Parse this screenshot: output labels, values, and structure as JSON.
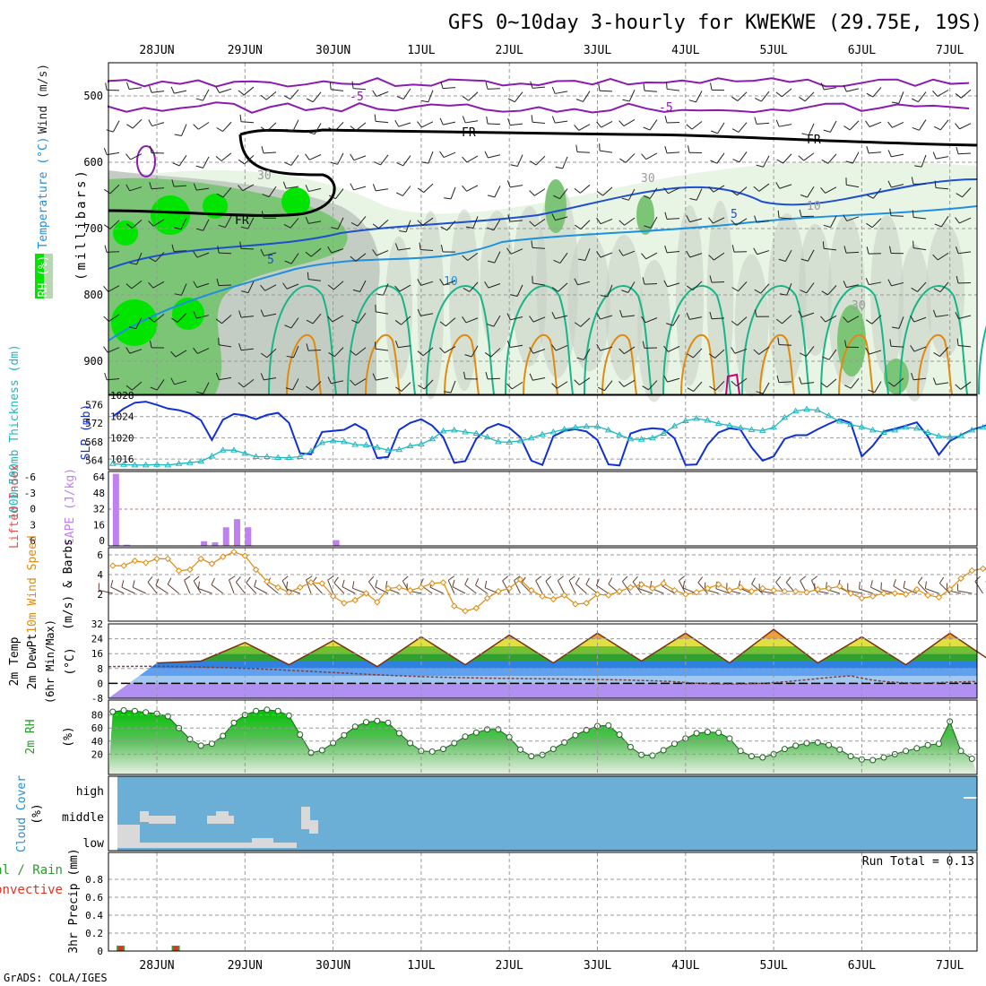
{
  "title": "GFS 0~10day 3-hourly for KWEKWE (29.75E, 19S)",
  "credit": "GrADS: COLA/IGES",
  "dates": [
    "28JUN",
    "29JUN",
    "30JUN",
    "1JUL",
    "2JUL",
    "3JUL",
    "4JUL",
    "5JUL",
    "6JUL",
    "7JUL"
  ],
  "colors": {
    "rh_light": "#e8f4e4",
    "rh_mid": "#b9d6b3",
    "rh_gray": "#c4cdc3",
    "rh_green": "#7cc576",
    "rh_bright": "#00e400",
    "temp_purple": "#8a1ab0",
    "temp_blue": "#1e4fd0",
    "temp_lightblue": "#1e90e0",
    "temp_teal": "#19b48a",
    "temp_orange": "#e08a10",
    "temp_magenta": "#d0007a",
    "slp": "#1030d0",
    "thickness": "#20b8c0",
    "cape": "#c080f0",
    "wind": "#e08a10",
    "barb": "#604030",
    "cloud_bg": "#6baed6",
    "cloud_fill": "#d9d9d9",
    "precip_green": "#2ca02c",
    "precip_red": "#e03020"
  },
  "panels": {
    "upper_air": {
      "ylabel_main": "(millibars)",
      "side_labels": [
        {
          "text": "Wind (m/s)",
          "color": "#222222"
        },
        {
          "text": "Temperature (°C)",
          "color": "#1e90e0"
        },
        {
          "text": "RH (%)",
          "color": "#2a8a2a"
        }
      ],
      "yticks": [
        500,
        600,
        700,
        800,
        900
      ],
      "contour_labels": [
        "-5",
        "-5",
        "FR",
        "FR",
        "FR",
        "5",
        "10",
        "5",
        "10",
        "30",
        "30",
        "30"
      ]
    },
    "thickness_slp": {
      "left_label": "1000-500mb Thickness (dm)",
      "right_label": "SLP (mb)",
      "left_ticks": [
        576,
        572,
        568,
        564
      ],
      "right_ticks": [
        1028,
        1024,
        1020,
        1016
      ]
    },
    "cape_li": {
      "left_label": "Lifted Index",
      "right_label": "CAPE (J/kg)",
      "left_ticks": [
        "-6",
        "-3",
        "0",
        "3",
        "6"
      ],
      "right_ticks": [
        "64",
        "48",
        "32",
        "16",
        "0"
      ]
    },
    "wind10m": {
      "label": "10m Wind Speed (m/s) & Barbs",
      "yticks": [
        6,
        4,
        2
      ]
    },
    "temp2m": {
      "label": "2m Temp 2m DewPt (6hr Min/Max) (°C)",
      "yticks": [
        32,
        24,
        16,
        8,
        0,
        -8
      ]
    },
    "rh2m": {
      "label": "2m RH (%)",
      "yticks": [
        80,
        60,
        40,
        20
      ]
    },
    "cloud": {
      "label": "Cloud Cover (%)",
      "levels": [
        "high",
        "middle",
        "low"
      ]
    },
    "precip": {
      "label": "3hr Precip (mm)",
      "legend1": "Total / Rain",
      "legend2": "Convective",
      "run_total": "Run Total = 0.13",
      "yticks": [
        0.8,
        0.6,
        0.4,
        0.2,
        0
      ]
    }
  },
  "chart_data": [
    {
      "type": "line",
      "title": "1000-500mb Thickness (dm) / SLP (mb)",
      "x_start": "2024-06-27 12Z",
      "x_step_hours": 3,
      "series": [
        {
          "name": "SLP (mb)",
          "ylim": [
            1014,
            1028
          ],
          "values": [
            1024,
            1025.5,
            1026.6,
            1026.8,
            1026.2,
            1025.5,
            1025.2,
            1024.6,
            1023.3,
            1019.6,
            1023.4,
            1024.5,
            1024.2,
            1023.5,
            1024.3,
            1024.7,
            1022.8,
            1017.1,
            1016.9,
            1021.1,
            1021.3,
            1021.5,
            1022.6,
            1021.4,
            1016.2,
            1016.4,
            1021.5,
            1022.8,
            1023.5,
            1022.3,
            1020.1,
            1015.3,
            1015.6,
            1019.8,
            1021.8,
            1022.6,
            1021.9,
            1020.1,
            1015.7,
            1014.9,
            1020.3,
            1021.3,
            1021.6,
            1021.2,
            1019.6,
            1015.0,
            1014.8,
            1020.8,
            1021.5,
            1021.8,
            1021.6,
            1019.9,
            1014.9,
            1015.0,
            1018.7,
            1021.0,
            1021.8,
            1021.5,
            1018.2,
            1015.7,
            1016.5,
            1019.8,
            1020.5,
            1020.5,
            1021.6,
            1022.6,
            1023.5,
            1022.8,
            1016.5,
            1018.5,
            1021.2,
            1021.7,
            1022.3,
            1022.9,
            1020.3,
            1016.8,
            1019.4,
            1020.5,
            1021.5,
            1022.1,
            1023.0
          ]
        },
        {
          "name": "1000-500mb Thickness (dm)",
          "ylim": [
            562,
            578
          ],
          "values": [
            563.3,
            563.1,
            563.0,
            563.0,
            563.1,
            563.0,
            563.3,
            563.5,
            563.8,
            564.9,
            566.2,
            566.2,
            565.5,
            564.8,
            564.8,
            564.6,
            564.6,
            564.8,
            566.0,
            567.8,
            568.2,
            568.0,
            567.4,
            567.3,
            566.8,
            566.2,
            566.3,
            567.1,
            567.5,
            568.6,
            570.3,
            570.5,
            570.1,
            569.8,
            569.0,
            568.0,
            567.9,
            568.2,
            568.8,
            569.6,
            570.1,
            570.7,
            571.1,
            571.3,
            571.3,
            570.5,
            569.5,
            568.6,
            568.5,
            568.8,
            569.8,
            571.4,
            572.5,
            573.0,
            572.6,
            571.9,
            571.5,
            571.0,
            570.6,
            570.4,
            571.1,
            573.2,
            574.6,
            575.0,
            574.8,
            573.6,
            572.4,
            571.7,
            571.2,
            570.5,
            570.0,
            570.5,
            571.1,
            570.9,
            570.0,
            569.2,
            569.0,
            569.3,
            570.5,
            571.1,
            572.0
          ]
        }
      ]
    },
    {
      "type": "bar",
      "title": "CAPE (J/kg)",
      "ylim": [
        0,
        64
      ],
      "values": [
        62,
        1,
        0,
        0,
        0,
        0,
        0,
        0,
        4,
        3,
        16,
        23,
        16,
        0,
        0,
        0,
        0,
        0,
        0,
        0,
        5,
        0,
        0,
        0,
        0,
        0,
        0,
        0,
        0,
        0,
        0,
        0,
        0,
        0,
        0,
        0,
        0,
        0,
        0,
        0,
        0,
        0,
        0,
        0,
        0,
        0,
        0,
        0,
        0,
        0,
        0,
        0,
        0,
        0,
        0,
        0,
        0,
        0,
        0,
        0,
        0,
        0,
        0,
        0,
        0,
        0,
        0,
        0,
        0,
        0,
        0,
        0,
        0,
        0,
        0,
        0,
        0,
        0,
        0,
        0,
        0
      ]
    },
    {
      "type": "line",
      "title": "10m Wind Speed (m/s)",
      "ylim": [
        0,
        6
      ],
      "values": [
        4.9,
        4.9,
        5.4,
        5.2,
        5.6,
        5.6,
        4.4,
        4.5,
        5.6,
        5.1,
        5.8,
        6.3,
        5.9,
        4.5,
        3.3,
        2.7,
        2.2,
        2.7,
        3.2,
        3.1,
        1.8,
        1.1,
        1.4,
        2.1,
        1.2,
        2.6,
        2.7,
        2.4,
        2.7,
        3.1,
        3.2,
        0.8,
        0.3,
        0.6,
        1.6,
        2.3,
        2.6,
        3.5,
        2.4,
        1.8,
        1.5,
        1.9,
        1.0,
        1.1,
        2.0,
        1.9,
        2.3,
        2.7,
        3.0,
        2.6,
        3.1,
        2.4,
        2.0,
        2.2,
        2.6,
        3.0,
        2.4,
        2.7,
        2.3,
        2.6,
        2.4,
        2.3,
        2.3,
        2.2,
        2.5,
        2.6,
        2.8,
        2.1,
        1.6,
        1.8,
        2.1,
        2.1,
        2.0,
        2.5,
        1.9,
        1.7,
        2.5,
        3.6,
        4.4,
        4.6,
        4.2
      ]
    },
    {
      "type": "area",
      "title": "2m Temp (°C)",
      "ylim": [
        -8,
        32
      ],
      "x_hours": [
        0,
        12,
        24,
        36,
        48,
        60,
        72,
        84,
        96,
        108,
        120,
        132,
        144,
        156,
        168,
        180,
        192,
        204,
        216,
        228,
        237
      ],
      "values": [
        11,
        12,
        22,
        10,
        23,
        9,
        25,
        10,
        26,
        11,
        27,
        12,
        27,
        11,
        29,
        11,
        25,
        10,
        27,
        11,
        14
      ]
    },
    {
      "type": "line",
      "title": "2m RH (%)",
      "ylim": [
        0,
        100
      ],
      "values": [
        63,
        75,
        82,
        85,
        87,
        86,
        84,
        82,
        78,
        60,
        43,
        33,
        36,
        48,
        68,
        80,
        86,
        88,
        86,
        79,
        50,
        22,
        26,
        37,
        49,
        62,
        69,
        71,
        68,
        52,
        37,
        25,
        24,
        28,
        37,
        47,
        53,
        58,
        58,
        46,
        27,
        17,
        19,
        28,
        38,
        49,
        57,
        63,
        64,
        50,
        31,
        19,
        18,
        26,
        36,
        44,
        52,
        54,
        53,
        44,
        25,
        17,
        15,
        20,
        28,
        33,
        37,
        38,
        34,
        27,
        17,
        12,
        11,
        15,
        20,
        25,
        29,
        34,
        36,
        70,
        25,
        13,
        16,
        45,
        57,
        74,
        86,
        89,
        77,
        41,
        15,
        12,
        22,
        34,
        46,
        52,
        48,
        35
      ]
    },
    {
      "type": "bar",
      "title": "3hr Precip (mm)",
      "ylim": [
        0,
        1
      ],
      "values": [
        0.06,
        0,
        0,
        0,
        0,
        0.06,
        0,
        0,
        0,
        0,
        0,
        0,
        0,
        0,
        0,
        0,
        0,
        0,
        0,
        0,
        0,
        0,
        0,
        0,
        0,
        0,
        0,
        0,
        0,
        0,
        0,
        0,
        0,
        0,
        0,
        0,
        0,
        0,
        0,
        0,
        0,
        0,
        0,
        0,
        0,
        0,
        0,
        0,
        0,
        0,
        0,
        0,
        0,
        0,
        0,
        0,
        0,
        0,
        0,
        0,
        0,
        0,
        0,
        0,
        0,
        0,
        0,
        0,
        0,
        0,
        0,
        0,
        0,
        0,
        0,
        0,
        0,
        0,
        0,
        0,
        0
      ]
    }
  ]
}
